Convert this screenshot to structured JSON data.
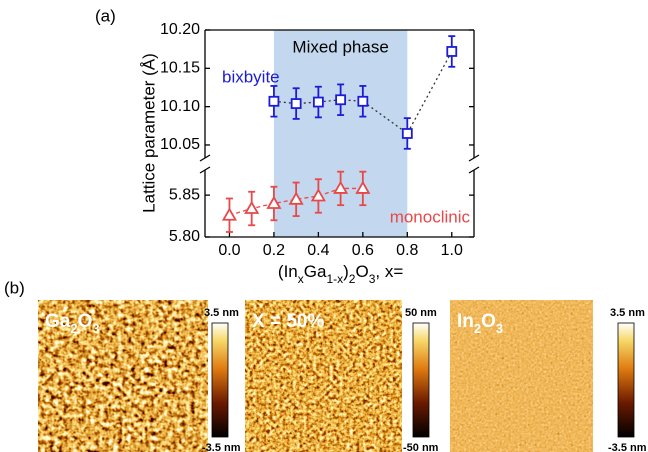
{
  "panel_a_label": "(a)",
  "panel_b_label": "(b)",
  "chart_data": {
    "type": "scatter",
    "y_label": "Lattice parameter (Å)",
    "x_label_parts": [
      "(In",
      "x",
      "Ga",
      "1-x",
      ")",
      "2",
      "O",
      "3",
      ", x="
    ],
    "xlim": [
      -0.11,
      1.1
    ],
    "xticks": [
      {
        "value": 0,
        "label": "0.0"
      },
      {
        "value": 0.2,
        "label": "0.2"
      },
      {
        "value": 0.4,
        "label": "0.4"
      },
      {
        "value": 0.6,
        "label": "0.6"
      },
      {
        "value": 0.8,
        "label": "0.8"
      },
      {
        "value": 1,
        "label": "1.0"
      }
    ],
    "broken_y_axis": true,
    "panels": [
      {
        "ylim": [
          10.033,
          10.2
        ],
        "yticks": [
          {
            "value": 10.05,
            "label": "10.05"
          },
          {
            "value": 10.1,
            "label": "10.10"
          },
          {
            "value": 10.15,
            "label": "10.15"
          },
          {
            "value": 10.2,
            "label": "10.20"
          }
        ]
      },
      {
        "ylim": [
          5.8,
          5.88
        ],
        "yticks": [
          {
            "value": 5.8,
            "label": "5.80"
          },
          {
            "value": 5.85,
            "label": "5.85"
          }
        ]
      }
    ],
    "shaded_region": {
      "label": "Mixed phase",
      "x": [
        0.2,
        0.8
      ],
      "color": "#c3d8ee"
    },
    "series": [
      {
        "name": "bixbyite",
        "color": "#1c1cd8",
        "marker": "square",
        "panel": 0,
        "line_color": "#333333",
        "line_dash": "2,3",
        "x": [
          0.2,
          0.3,
          0.4,
          0.5,
          0.6,
          0.8,
          1.0
        ],
        "values": [
          10.107,
          10.104,
          10.106,
          10.109,
          10.107,
          10.065,
          10.172
        ],
        "errors": [
          0.02,
          0.02,
          0.02,
          0.02,
          0.02,
          0.02,
          0.02
        ]
      },
      {
        "name": "monoclinic",
        "color": "#e84848",
        "marker": "triangle",
        "panel": 1,
        "line_color": "#e84848",
        "line_dash": "4,3",
        "x": [
          0.0,
          0.1,
          0.2,
          0.3,
          0.4,
          0.5,
          0.6
        ],
        "values": [
          5.826,
          5.834,
          5.84,
          5.845,
          5.849,
          5.858,
          5.858
        ],
        "errors": [
          0.02,
          0.02,
          0.02,
          0.02,
          0.02,
          0.02,
          0.02
        ]
      }
    ]
  },
  "images": [
    {
      "label_parts": [
        "Ga",
        "2",
        "O",
        "3"
      ],
      "max_label": "3.5 nm",
      "min_label": "-3.5 nm"
    },
    {
      "label_parts": [
        "X = 50%"
      ],
      "max_label": "50 nm",
      "min_label": "-50 nm"
    },
    {
      "label_parts": [
        "In",
        "2",
        "O",
        "3"
      ],
      "max_label": "3.5 nm",
      "min_label": "-3.5 nm"
    }
  ]
}
